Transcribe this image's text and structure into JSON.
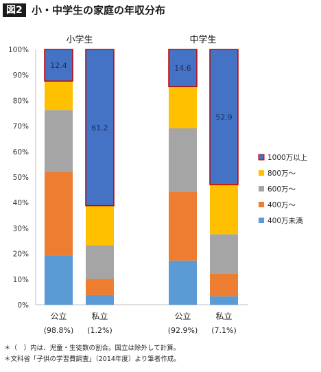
{
  "figure": {
    "tag": "図2",
    "title": "小・中学生の家庭の年収分布"
  },
  "footnotes": [
    "＊（　）内は、児童・生徒数の割合。国立は除外して計算。",
    "＊文科省「子供の学習費調査」（2014年度）より筆者作成。"
  ],
  "colors": {
    "band1000": "#4472C4",
    "band800": "#FFC000",
    "band600": "#A5A5A5",
    "band400": "#ED7D31",
    "bandUnder400": "#5B9BD5",
    "highlight": "#C00000"
  },
  "chart_data": {
    "type": "bar",
    "stacked": true,
    "groups": [
      {
        "label": "小学生",
        "categories": [
          "公立",
          "私立"
        ],
        "shares": [
          "(98.8%)",
          "(1.2%)"
        ]
      },
      {
        "label": "中学生",
        "categories": [
          "公立",
          "私立"
        ],
        "shares": [
          "(92.9%)",
          "(7.1%)"
        ]
      }
    ],
    "categories": [
      "小学生 公立",
      "小学生 私立",
      "中学生 公立",
      "中学生 私立"
    ],
    "series": [
      {
        "name": "400万未満",
        "values": [
          19.2,
          3.8,
          17.3,
          3.3
        ]
      },
      {
        "name": "400万～",
        "values": [
          32.8,
          6.3,
          27.0,
          9.0
        ]
      },
      {
        "name": "600万～",
        "values": [
          24.3,
          13.2,
          24.8,
          15.3
        ]
      },
      {
        "name": "800万～",
        "values": [
          11.3,
          15.5,
          16.3,
          19.5
        ]
      },
      {
        "name": "1000万以上",
        "values": [
          12.4,
          61.2,
          14.6,
          52.9
        ]
      }
    ],
    "data_labels": [
      "12.4",
      "61.2",
      "14.6",
      "52.9"
    ],
    "y_ticks": [
      "0%",
      "10%",
      "20%",
      "30%",
      "40%",
      "50%",
      "60%",
      "70%",
      "80%",
      "90%",
      "100%"
    ],
    "ylim": [
      0,
      100
    ],
    "legend": [
      "1000万以上",
      "800万～",
      "600万～",
      "400万～",
      "400万未満"
    ],
    "legend_position": "right",
    "grid": false
  }
}
